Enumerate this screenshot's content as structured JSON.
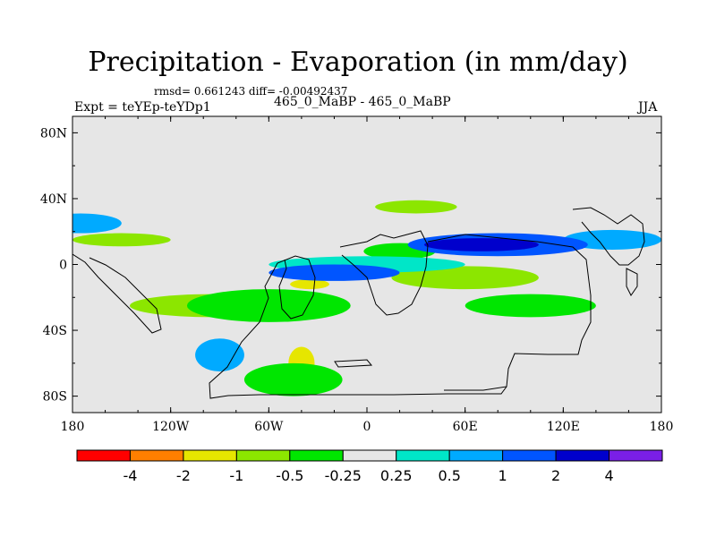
{
  "header": {
    "title": "Precipitation - Evaporation (in mm/day)",
    "stats": "rmsd= 0.661243 diff= -0.00492437",
    "expt": "Expt = teYEp-teYDp1",
    "case": "465_0_MaBP - 465_0_MaBP",
    "season": "JJA"
  },
  "colors": {
    "background": "#e6e6e6",
    "coast": "#000000",
    "frame": "#000000"
  },
  "chart_data": {
    "type": "heatmap",
    "title": "Precipitation - Evaporation (in mm/day)",
    "subtitle": "rmsd= 0.661243 diff= -0.00492437",
    "xlabel": "",
    "ylabel": "",
    "xlim": [
      -180,
      180
    ],
    "ylim": [
      -90,
      90
    ],
    "x_ticks": [
      {
        "value": -180,
        "label": "180"
      },
      {
        "value": -120,
        "label": "120W"
      },
      {
        "value": -60,
        "label": "60W"
      },
      {
        "value": 0,
        "label": "0"
      },
      {
        "value": 60,
        "label": "60E"
      },
      {
        "value": 120,
        "label": "120E"
      },
      {
        "value": 180,
        "label": "180"
      }
    ],
    "y_ticks": [
      {
        "value": 80,
        "label": "80N"
      },
      {
        "value": 40,
        "label": "40N"
      },
      {
        "value": 0,
        "label": "0"
      },
      {
        "value": -40,
        "label": "40S"
      },
      {
        "value": -80,
        "label": "80S"
      }
    ],
    "colorbar": {
      "colors": [
        "#ff0000",
        "#ff7f00",
        "#e6e600",
        "#8ce600",
        "#00e600",
        "#e6e6e6",
        "#00e6c8",
        "#00aaff",
        "#0055ff",
        "#0000cc",
        "#7a1fe6"
      ],
      "labels": [
        "-4",
        "-2",
        "-1",
        "-0.5",
        "-0.25",
        "0.25",
        "0.5",
        "1",
        "2",
        "4"
      ]
    },
    "fields": [
      {
        "lon": -35,
        "lat": -12,
        "rx": 12,
        "ry": 3,
        "level": 2
      },
      {
        "lon": 70,
        "lat": -10,
        "rx": 30,
        "ry": 4,
        "level": 2
      },
      {
        "lon": -95,
        "lat": -25,
        "rx": 50,
        "ry": 7,
        "level": 3
      },
      {
        "lon": 30,
        "lat": 35,
        "rx": 25,
        "ry": 4,
        "level": 3
      },
      {
        "lon": -40,
        "lat": -60,
        "rx": 8,
        "ry": 10,
        "level": 2
      },
      {
        "lon": 60,
        "lat": -8,
        "rx": 45,
        "ry": 7,
        "level": 3
      },
      {
        "lon": -150,
        "lat": 15,
        "rx": 30,
        "ry": 4,
        "level": 3
      },
      {
        "lon": 20,
        "lat": 8,
        "rx": 22,
        "ry": 5,
        "level": 4
      },
      {
        "lon": -60,
        "lat": -25,
        "rx": 50,
        "ry": 10,
        "level": 4
      },
      {
        "lon": 100,
        "lat": -25,
        "rx": 40,
        "ry": 7,
        "level": 4
      },
      {
        "lon": -45,
        "lat": -70,
        "rx": 30,
        "ry": 10,
        "level": 4
      },
      {
        "lon": 0,
        "lat": 0,
        "rx": 60,
        "ry": 5,
        "level": 6
      },
      {
        "lon": -175,
        "lat": 25,
        "rx": 25,
        "ry": 6,
        "level": 7
      },
      {
        "lon": 150,
        "lat": 15,
        "rx": 30,
        "ry": 6,
        "level": 7
      },
      {
        "lon": 80,
        "lat": 12,
        "rx": 55,
        "ry": 7,
        "level": 8
      },
      {
        "lon": -20,
        "lat": -5,
        "rx": 40,
        "ry": 5,
        "level": 8
      },
      {
        "lon": -90,
        "lat": -55,
        "rx": 15,
        "ry": 10,
        "level": 7
      },
      {
        "lon": 70,
        "lat": 12,
        "rx": 35,
        "ry": 4,
        "level": 9
      }
    ]
  }
}
